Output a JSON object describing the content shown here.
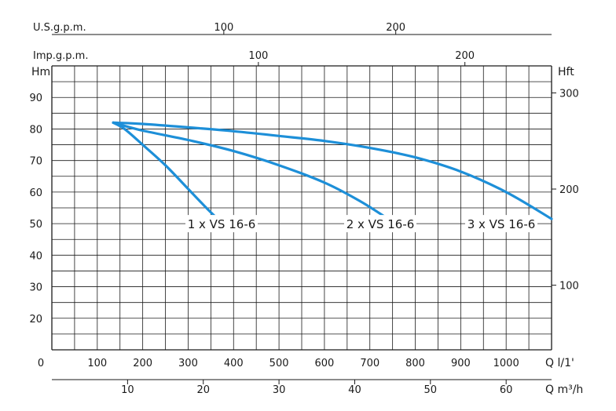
{
  "chart_data": {
    "type": "line",
    "title": "",
    "xlabel": "Q l/1'",
    "ylabel": "Hm",
    "xlim": [
      0,
      1100
    ],
    "ylim": [
      10,
      100
    ],
    "x_ticks": [
      0,
      100,
      200,
      300,
      400,
      500,
      600,
      700,
      800,
      900,
      1000
    ],
    "y_ticks": [
      20,
      30,
      40,
      50,
      60,
      70,
      80,
      90
    ],
    "grid": true,
    "secondary_axes": {
      "bottom": {
        "label": "Q m³/h",
        "ticks": [
          10,
          20,
          30,
          40,
          50,
          60
        ]
      },
      "top_usgpm": {
        "label": "U.S.g.p.m.",
        "ticks": [
          100,
          200
        ]
      },
      "top_impgpm": {
        "label": "Imp.g.p.m.",
        "ticks": [
          100,
          200
        ]
      },
      "right": {
        "label": "Hft",
        "ticks": [
          100,
          200,
          300
        ]
      }
    },
    "series": [
      {
        "name": "1 x VS 16-6",
        "color": "#1d8fd8",
        "x": [
          135,
          160,
          200,
          250,
          300,
          340,
          365
        ],
        "y": [
          82,
          80,
          75,
          68.5,
          61,
          55,
          51.5
        ]
      },
      {
        "name": "2 x VS 16-6",
        "color": "#1d8fd8",
        "x": [
          135,
          200,
          300,
          400,
          500,
          600,
          680,
          740
        ],
        "y": [
          82,
          79.5,
          76.5,
          73,
          68.5,
          63,
          57,
          51.5
        ]
      },
      {
        "name": "3 x VS 16-6",
        "color": "#1d8fd8",
        "x": [
          135,
          200,
          300,
          400,
          500,
          600,
          700,
          800,
          900,
          1000,
          1100
        ],
        "y": [
          82,
          81.6,
          80.5,
          79.3,
          77.8,
          76.2,
          74,
          71,
          66.5,
          60,
          51.5
        ]
      }
    ]
  }
}
